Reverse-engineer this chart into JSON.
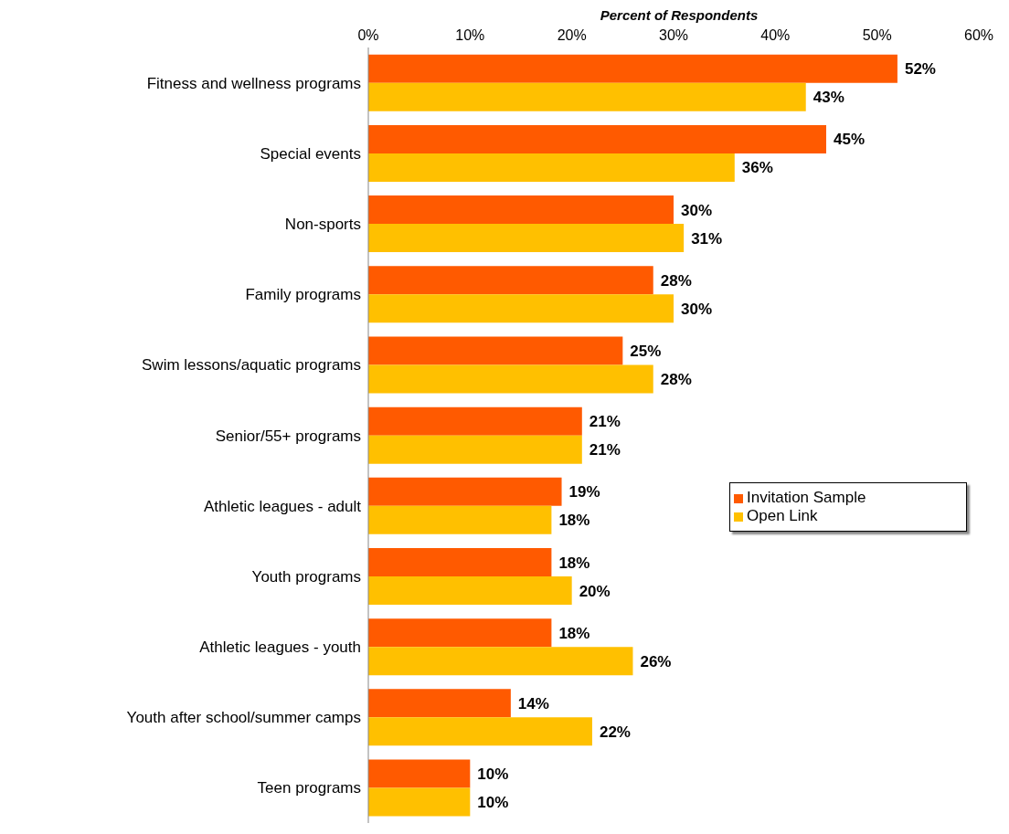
{
  "chart_data": {
    "type": "bar",
    "orientation": "horizontal",
    "xlabel": "Percent of Respondents",
    "categories": [
      "Fitness and wellness programs",
      "Special events",
      "Non-sports",
      "Family programs",
      "Swim lessons/aquatic programs",
      "Senior/55+ programs",
      "Athletic leagues - adult",
      "Youth programs",
      "Athletic leagues - youth",
      "Youth after school/summer camps",
      "Teen programs"
    ],
    "series": [
      {
        "name": "Invitation Sample",
        "color": "#ff5a00",
        "values": [
          52,
          45,
          30,
          28,
          25,
          21,
          19,
          18,
          18,
          14,
          10
        ],
        "value_labels": [
          "52%",
          "45%",
          "30%",
          "28%",
          "25%",
          "21%",
          "19%",
          "18%",
          "18%",
          "14%",
          "10%"
        ]
      },
      {
        "name": "Open Link",
        "color": "#ffc000",
        "values": [
          43,
          36,
          31,
          30,
          28,
          21,
          18,
          20,
          26,
          22,
          10
        ],
        "value_labels": [
          "43%",
          "36%",
          "31%",
          "30%",
          "28%",
          "21%",
          "18%",
          "20%",
          "26%",
          "22%",
          "10%"
        ]
      }
    ],
    "xlim": [
      0,
      60
    ],
    "xticks": [
      {
        "value": 0,
        "label": "0%"
      },
      {
        "value": 10,
        "label": "10%"
      },
      {
        "value": 20,
        "label": "20%"
      },
      {
        "value": 30,
        "label": "30%"
      },
      {
        "value": 40,
        "label": "40%"
      },
      {
        "value": 50,
        "label": "50%"
      },
      {
        "value": 60,
        "label": "60%"
      }
    ],
    "grid": false,
    "legend": "right"
  }
}
